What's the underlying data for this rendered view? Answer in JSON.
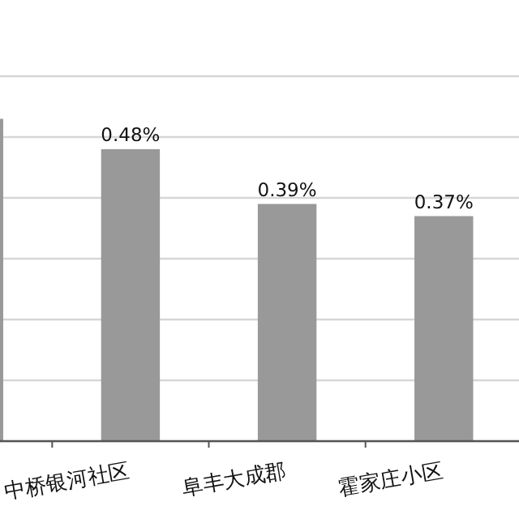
{
  "chart_data": {
    "type": "bar",
    "categories": [
      null,
      "中桥银河社区",
      "阜丰大成郡",
      "霍家庄小区"
    ],
    "values": [
      0.53,
      0.48,
      0.39,
      0.37
    ],
    "value_labels": [
      null,
      "0.48%",
      "0.39%",
      "0.37%"
    ],
    "color": "#999999",
    "ylim": [
      0,
      0.6
    ],
    "yticks": [
      {
        "value": 0,
        "label": null
      },
      {
        "value": 0.1,
        "label": null
      },
      {
        "value": 0.2,
        "label": null
      },
      {
        "value": 0.3,
        "label": null
      },
      {
        "value": 0.4,
        "label": null
      },
      {
        "value": 0.5,
        "label": null
      },
      {
        "value": 0.6,
        "label": null
      }
    ],
    "tick_labels": "x",
    "grid": "y"
  }
}
